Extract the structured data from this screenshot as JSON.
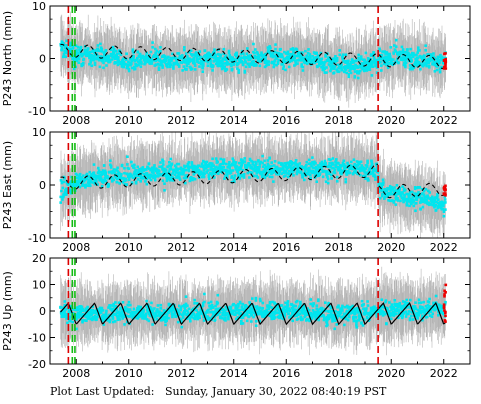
{
  "footer": {
    "label": "Plot Last Updated:",
    "timestamp": "Sunday, January 30, 2022 08:40:19 PST"
  },
  "colors": {
    "data": "#00e5ee",
    "error_bars": "#a9a9a9",
    "model": "#000000",
    "event_red": "#dd0000",
    "event_green": "#11bb11",
    "recent_points": "#ee0000"
  },
  "chart_data": [
    {
      "type": "scatter",
      "ylabel": "P243 North (mm)",
      "xlim": [
        2007.0,
        2023.0
      ],
      "ylim": [
        -10,
        10
      ],
      "yticks": [
        -10,
        0,
        10
      ],
      "xticks": [
        2008,
        2010,
        2012,
        2014,
        2016,
        2018,
        2020,
        2022
      ],
      "grid": false,
      "legend": "none",
      "data_range": [
        2007.4,
        2022.08
      ],
      "series": [
        {
          "kind": "data_band",
          "x": [
            2007.4,
            2008.0,
            2009.0,
            2010.0,
            2011.0,
            2012.0,
            2013.0,
            2014.0,
            2015.0,
            2016.0,
            2017.0,
            2018.0,
            2018.5,
            2019.0,
            2020.0,
            2021.0,
            2022.0
          ],
          "y": [
            2.0,
            0.5,
            0.5,
            -0.5,
            0.0,
            -0.5,
            0.0,
            -0.5,
            0.0,
            0.0,
            0.0,
            -1.0,
            -2.0,
            -1.0,
            0.5,
            0.0,
            -0.5
          ],
          "spread": 2.5,
          "error_spread": 5.0
        },
        {
          "kind": "model_dashed",
          "trend": [
            1.5,
            -0.15
          ],
          "seasonal_amplitude": 1.2
        },
        {
          "kind": "recent_points",
          "x": [
            2022.0,
            2022.08
          ],
          "y_range": [
            -2,
            1
          ]
        }
      ],
      "events": [
        {
          "x": 2007.7,
          "color": "red"
        },
        {
          "x": 2007.85,
          "color": "green"
        },
        {
          "x": 2007.95,
          "color": "green"
        },
        {
          "x": 2019.5,
          "color": "red"
        }
      ]
    },
    {
      "type": "scatter",
      "ylabel": "P243 East (mm)",
      "xlim": [
        2007.0,
        2023.0
      ],
      "ylim": [
        -10,
        10
      ],
      "yticks": [
        -10,
        0,
        10
      ],
      "xticks": [
        2008,
        2010,
        2012,
        2014,
        2016,
        2018,
        2020,
        2022
      ],
      "grid": false,
      "legend": "none",
      "data_range": [
        2007.4,
        2022.08
      ],
      "series": [
        {
          "kind": "data_band",
          "x": [
            2007.4,
            2008.0,
            2009.0,
            2010.0,
            2011.0,
            2012.0,
            2013.0,
            2014.0,
            2015.0,
            2016.0,
            2017.0,
            2018.0,
            2019.0,
            2019.5,
            2019.55,
            2020.0,
            2021.0,
            2022.0
          ],
          "y": [
            -1.0,
            0.5,
            1.5,
            2.0,
            2.5,
            2.5,
            3.0,
            3.0,
            3.0,
            3.0,
            3.0,
            3.0,
            3.0,
            3.0,
            -1.0,
            -1.5,
            -2.5,
            -3.5
          ],
          "spread": 2.5,
          "error_spread": 5.0
        },
        {
          "kind": "model_dashed",
          "trend": [
            0.3,
            0.2
          ],
          "seasonal_amplitude": 1.2,
          "offset_after": [
            2019.5,
            -4.0
          ]
        },
        {
          "kind": "recent_points",
          "x": [
            2022.0,
            2022.08
          ],
          "y_range": [
            -2,
            0
          ]
        }
      ],
      "events": [
        {
          "x": 2007.7,
          "color": "red"
        },
        {
          "x": 2007.85,
          "color": "green"
        },
        {
          "x": 2007.95,
          "color": "green"
        },
        {
          "x": 2019.5,
          "color": "red"
        }
      ]
    },
    {
      "type": "scatter",
      "ylabel": "P243 Up (mm)",
      "xlim": [
        2007.0,
        2023.0
      ],
      "ylim": [
        -20,
        20
      ],
      "yticks": [
        -20,
        -10,
        0,
        10,
        20
      ],
      "xticks": [
        2008,
        2010,
        2012,
        2014,
        2016,
        2018,
        2020,
        2022
      ],
      "grid": false,
      "legend": "none",
      "data_range": [
        2007.4,
        2022.08
      ],
      "series": [
        {
          "kind": "data_band",
          "x": [
            2007.4,
            2008.0,
            2010.0,
            2012.0,
            2014.0,
            2016.0,
            2018.0,
            2020.0,
            2022.0
          ],
          "y": [
            0.0,
            -1.0,
            -1.0,
            -1.0,
            0.0,
            0.0,
            -1.0,
            0.0,
            1.0
          ],
          "spread": 5.0,
          "error_spread": 10.0
        },
        {
          "kind": "model_solid",
          "trend": [
            -1.0,
            0.0
          ],
          "seasonal_amplitude": 4.0,
          "seasonal_shape": "sawtooth"
        },
        {
          "kind": "recent_points",
          "x": [
            2022.0,
            2022.08
          ],
          "y_range": [
            -4,
            10
          ]
        }
      ],
      "events": [
        {
          "x": 2007.7,
          "color": "red"
        },
        {
          "x": 2007.85,
          "color": "green"
        },
        {
          "x": 2007.95,
          "color": "green"
        },
        {
          "x": 2019.5,
          "color": "red"
        }
      ]
    }
  ]
}
